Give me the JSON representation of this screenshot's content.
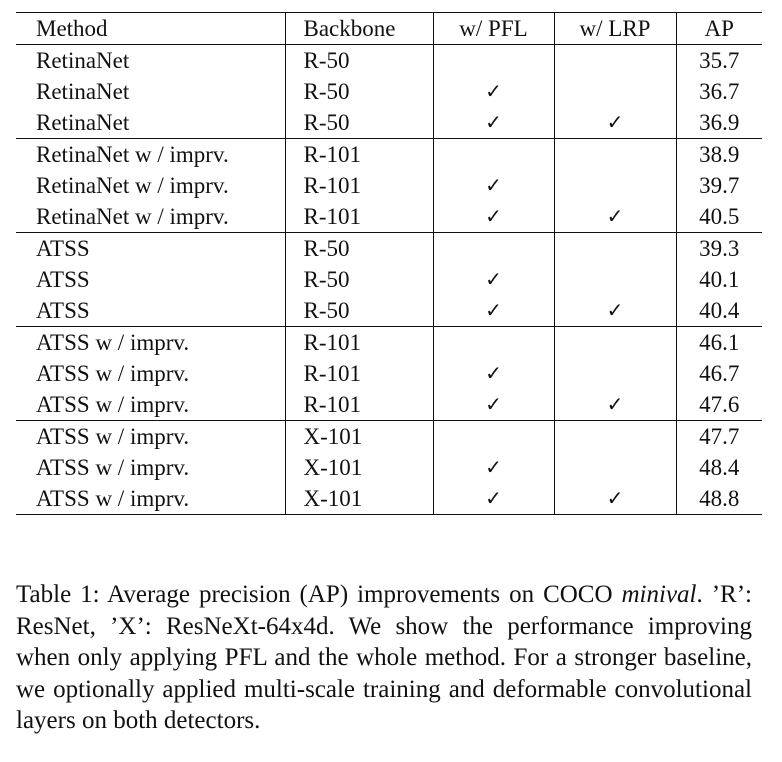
{
  "table": {
    "headers": [
      "Method",
      "Backbone",
      "w/ PFL",
      "w/ LRP",
      "AP"
    ],
    "check_mark": "✓",
    "groups": [
      {
        "rows": [
          {
            "method": "RetinaNet",
            "backbone": "R-50",
            "pfl": false,
            "lrp": false,
            "ap": "35.7",
            "best": false
          },
          {
            "method": "RetinaNet",
            "backbone": "R-50",
            "pfl": true,
            "lrp": false,
            "ap": "36.7",
            "best": false
          },
          {
            "method": "RetinaNet",
            "backbone": "R-50",
            "pfl": true,
            "lrp": true,
            "ap": "36.9",
            "best": true
          }
        ]
      },
      {
        "rows": [
          {
            "method": "RetinaNet w / imprv.",
            "backbone": "R-101",
            "pfl": false,
            "lrp": false,
            "ap": "38.9",
            "best": false
          },
          {
            "method": "RetinaNet w / imprv.",
            "backbone": "R-101",
            "pfl": true,
            "lrp": false,
            "ap": "39.7",
            "best": false
          },
          {
            "method": "RetinaNet w / imprv.",
            "backbone": "R-101",
            "pfl": true,
            "lrp": true,
            "ap": "40.5",
            "best": true
          }
        ]
      },
      {
        "rows": [
          {
            "method": "ATSS",
            "backbone": "R-50",
            "pfl": false,
            "lrp": false,
            "ap": "39.3",
            "best": false
          },
          {
            "method": "ATSS",
            "backbone": "R-50",
            "pfl": true,
            "lrp": false,
            "ap": "40.1",
            "best": false
          },
          {
            "method": "ATSS",
            "backbone": "R-50",
            "pfl": true,
            "lrp": true,
            "ap": "40.4",
            "best": true
          }
        ]
      },
      {
        "rows": [
          {
            "method": "ATSS w / imprv.",
            "backbone": "R-101",
            "pfl": false,
            "lrp": false,
            "ap": "46.1",
            "best": false
          },
          {
            "method": "ATSS w / imprv.",
            "backbone": "R-101",
            "pfl": true,
            "lrp": false,
            "ap": "46.7",
            "best": false
          },
          {
            "method": "ATSS w / imprv.",
            "backbone": "R-101",
            "pfl": true,
            "lrp": true,
            "ap": "47.6",
            "best": true
          }
        ]
      },
      {
        "rows": [
          {
            "method": "ATSS w / imprv.",
            "backbone": "X-101",
            "pfl": false,
            "lrp": false,
            "ap": "47.7",
            "best": false
          },
          {
            "method": "ATSS w / imprv.",
            "backbone": "X-101",
            "pfl": true,
            "lrp": false,
            "ap": "48.4",
            "best": false
          },
          {
            "method": "ATSS w / imprv.",
            "backbone": "X-101",
            "pfl": true,
            "lrp": true,
            "ap": "48.8",
            "best": true
          }
        ]
      }
    ]
  },
  "caption": {
    "prefix": "Table 1: Average precision (AP) improvements on COCO ",
    "italic": "minival",
    "suffix": ". ’R’: ResNet, ’X’: ResNeXt-64x4d. We show the performance improving when only applying PFL and the whole method. For a stronger baseline, we optionally applied multi-scale training and deformable convolutional layers on both detectors."
  }
}
